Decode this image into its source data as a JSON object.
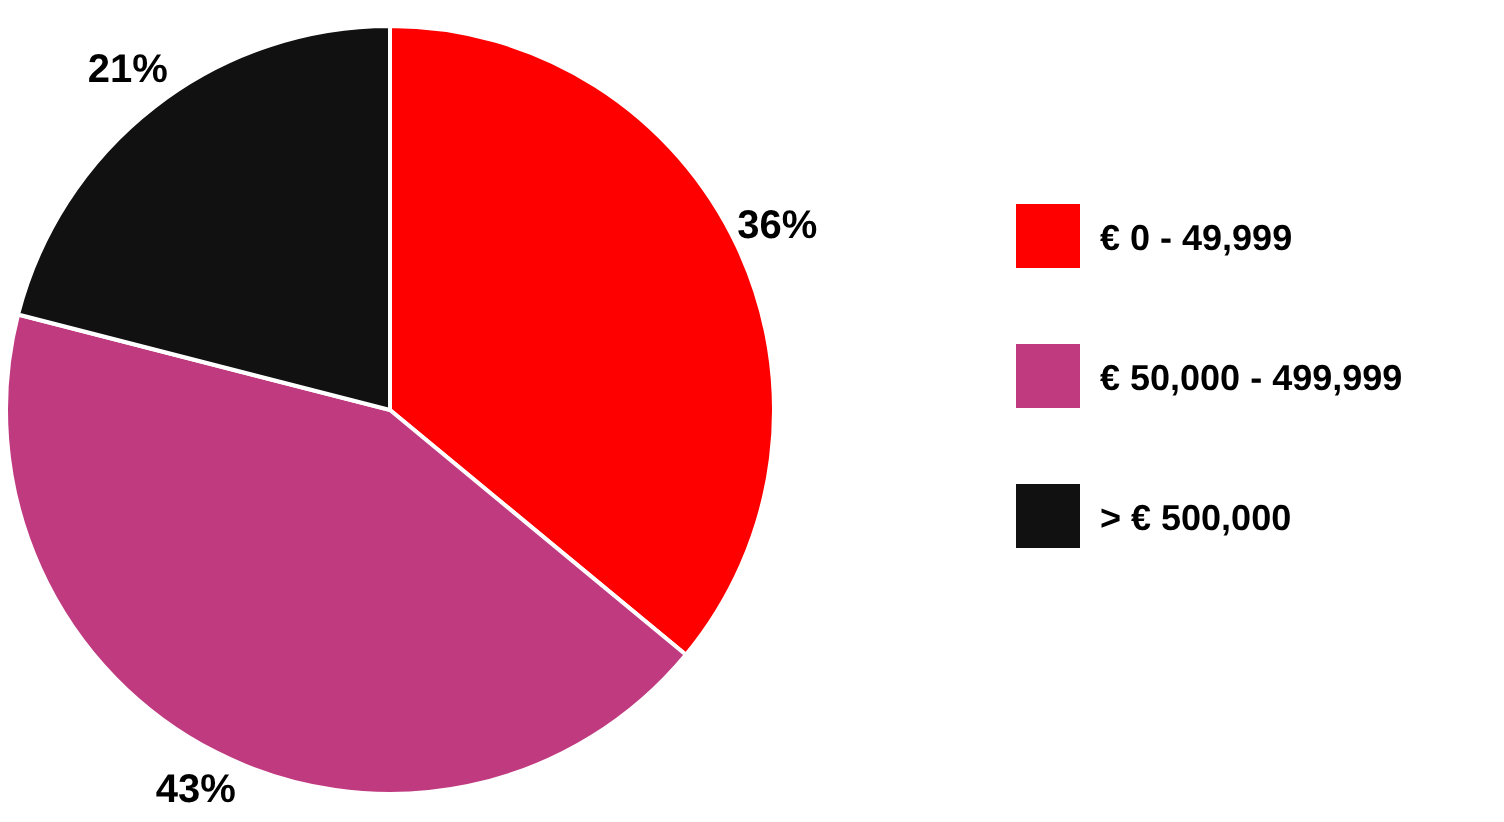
{
  "chart_data": {
    "type": "pie",
    "categories": [
      "€ 0 - 49,999",
      "€ 50,000 - 499,999",
      "> € 500,000"
    ],
    "values": [
      36,
      43,
      21
    ],
    "colors": [
      "#ff0000",
      "#c03a80",
      "#111111"
    ],
    "value_labels": [
      "36%",
      "43%",
      "21%"
    ],
    "legend": "right"
  }
}
